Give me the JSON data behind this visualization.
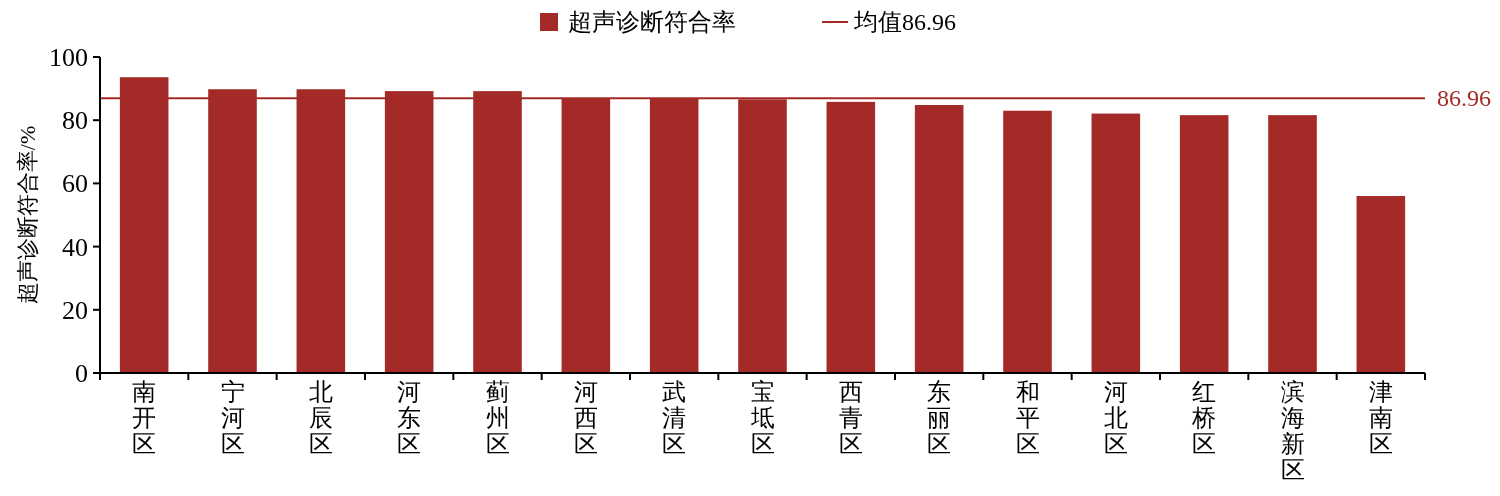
{
  "chart_data": {
    "type": "bar",
    "ylabel": "超声诊断符合率/%",
    "categories": [
      "南开区",
      "宁河区",
      "北辰区",
      "河东区",
      "蓟州区",
      "河西区",
      "武清区",
      "宝坻区",
      "西青区",
      "东丽区",
      "和平区",
      "河北区",
      "红桥区",
      "滨海新区",
      "津南区"
    ],
    "series": [
      {
        "name": "超声诊断符合率",
        "color": "#a32a27",
        "values": [
          93.6,
          89.8,
          89.8,
          89.2,
          89.2,
          86.8,
          86.8,
          86.6,
          85.8,
          84.8,
          83.0,
          82.1,
          81.6,
          81.6,
          56.0
        ]
      }
    ],
    "ref_lines": [
      {
        "axis": "y",
        "value": 86.96,
        "label": "均值86.96",
        "color": "#a32a27",
        "line_style": "solid"
      }
    ],
    "annotations": [
      "86.96"
    ],
    "ylim": [
      0,
      100
    ],
    "yticks": [
      0,
      20,
      40,
      60,
      80,
      100
    ],
    "grid": false,
    "legend": "top"
  }
}
